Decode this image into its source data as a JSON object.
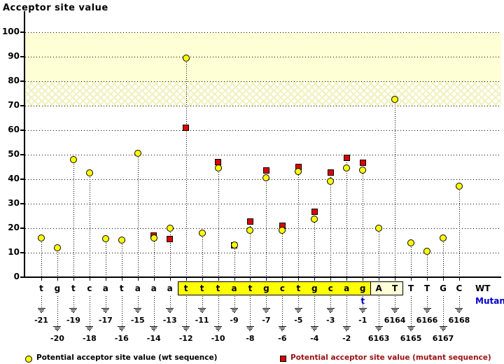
{
  "title": "Acceptor site value",
  "colors": {
    "wt_marker": "#FFFF00",
    "mutant_marker": "#DD0000",
    "marker_border": "#000000",
    "band_solid": "#FFFFD6",
    "band_hatch_line": "#F1F1BC",
    "mutant_text": "#0000CC",
    "legend_mutant_text": "#991111",
    "highlight_box_yellow": "#FFFF00",
    "highlight_box_cream": "#FFFFD8"
  },
  "legend": {
    "wt": "Potential acceptor site value (wt sequence)",
    "mutant": "Potential acceptor site value (mutant sequence)"
  },
  "chart_data": {
    "type": "scatter",
    "title": "Acceptor site value",
    "ylabel": "Acceptor site value",
    "xlabel": "",
    "ylim": [
      0,
      110
    ],
    "yticks": [
      0,
      10,
      20,
      30,
      40,
      50,
      60,
      70,
      80,
      90,
      100
    ],
    "grid": "dotted horizontal",
    "legend_position": "bottom",
    "threshold_bands": [
      {
        "from": 80,
        "to": 100,
        "style": "solid"
      },
      {
        "from": 70,
        "to": 80,
        "style": "crosshatch"
      }
    ],
    "series_names": [
      "Potential acceptor site value (wt sequence)",
      "Potential acceptor site value (mutant sequence)"
    ],
    "row_labels": {
      "wt": "WT",
      "mutant": "Mutant"
    },
    "mutant_base_annotation": {
      "position": "-1",
      "base": "t"
    },
    "columns": [
      {
        "position": "-21",
        "base": "t",
        "wt": 16,
        "mutant": null,
        "label_row": "upper",
        "highlight": "none"
      },
      {
        "position": "-20",
        "base": "g",
        "wt": 12,
        "mutant": null,
        "label_row": "lower",
        "highlight": "none"
      },
      {
        "position": "-19",
        "base": "t",
        "wt": 48,
        "mutant": null,
        "label_row": "upper",
        "highlight": "none"
      },
      {
        "position": "-18",
        "base": "c",
        "wt": 42.5,
        "mutant": null,
        "label_row": "lower",
        "highlight": "none"
      },
      {
        "position": "-17",
        "base": "a",
        "wt": 15.5,
        "mutant": null,
        "label_row": "upper",
        "highlight": "none"
      },
      {
        "position": "-16",
        "base": "t",
        "wt": 15,
        "mutant": null,
        "label_row": "lower",
        "highlight": "none"
      },
      {
        "position": "-15",
        "base": "a",
        "wt": 50.5,
        "mutant": null,
        "label_row": "upper",
        "highlight": "none"
      },
      {
        "position": "-14",
        "base": "a",
        "wt": 16,
        "mutant": 17,
        "label_row": "lower",
        "highlight": "none"
      },
      {
        "position": "-13",
        "base": "a",
        "wt": 20,
        "mutant": 15.5,
        "label_row": "upper",
        "highlight": "none"
      },
      {
        "position": "-12",
        "base": "t",
        "wt": 89.5,
        "mutant": 61,
        "label_row": "lower",
        "highlight": "yellow"
      },
      {
        "position": "-11",
        "base": "t",
        "wt": 18,
        "mutant": null,
        "label_row": "upper",
        "highlight": "yellow"
      },
      {
        "position": "-10",
        "base": "t",
        "wt": 44.5,
        "mutant": 47,
        "label_row": "lower",
        "highlight": "yellow"
      },
      {
        "position": "-9",
        "base": "a",
        "wt": 13,
        "mutant": 13,
        "label_row": "upper",
        "highlight": "yellow"
      },
      {
        "position": "-8",
        "base": "t",
        "wt": 19,
        "mutant": 22.5,
        "label_row": "lower",
        "highlight": "yellow"
      },
      {
        "position": "-7",
        "base": "g",
        "wt": 40.5,
        "mutant": 43.5,
        "label_row": "upper",
        "highlight": "yellow"
      },
      {
        "position": "-6",
        "base": "c",
        "wt": 19,
        "mutant": 21,
        "label_row": "lower",
        "highlight": "yellow"
      },
      {
        "position": "-5",
        "base": "t",
        "wt": 43,
        "mutant": 45,
        "label_row": "upper",
        "highlight": "yellow"
      },
      {
        "position": "-4",
        "base": "g",
        "wt": 23.5,
        "mutant": 26.5,
        "label_row": "lower",
        "highlight": "yellow"
      },
      {
        "position": "-3",
        "base": "c",
        "wt": 39,
        "mutant": 42.5,
        "label_row": "upper",
        "highlight": "yellow"
      },
      {
        "position": "-2",
        "base": "a",
        "wt": 44.5,
        "mutant": 48.5,
        "label_row": "lower",
        "highlight": "yellow"
      },
      {
        "position": "-1",
        "base": "g",
        "wt": 43.5,
        "mutant": 46.5,
        "label_row": "upper",
        "highlight": "yellow"
      },
      {
        "position": "6163",
        "base": "A",
        "wt": 20,
        "mutant": null,
        "label_row": "lower",
        "highlight": "cream"
      },
      {
        "position": "6164",
        "base": "T",
        "wt": 72.5,
        "mutant": null,
        "label_row": "upper",
        "highlight": "cream"
      },
      {
        "position": "6165",
        "base": "T",
        "wt": 14,
        "mutant": null,
        "label_row": "lower",
        "highlight": "none"
      },
      {
        "position": "6166",
        "base": "T",
        "wt": 10.5,
        "mutant": null,
        "label_row": "upper",
        "highlight": "none"
      },
      {
        "position": "6167",
        "base": "G",
        "wt": 16,
        "mutant": null,
        "label_row": "lower",
        "highlight": "none"
      },
      {
        "position": "6168",
        "base": "C",
        "wt": 37,
        "mutant": null,
        "label_row": "upper",
        "highlight": "none"
      }
    ]
  }
}
